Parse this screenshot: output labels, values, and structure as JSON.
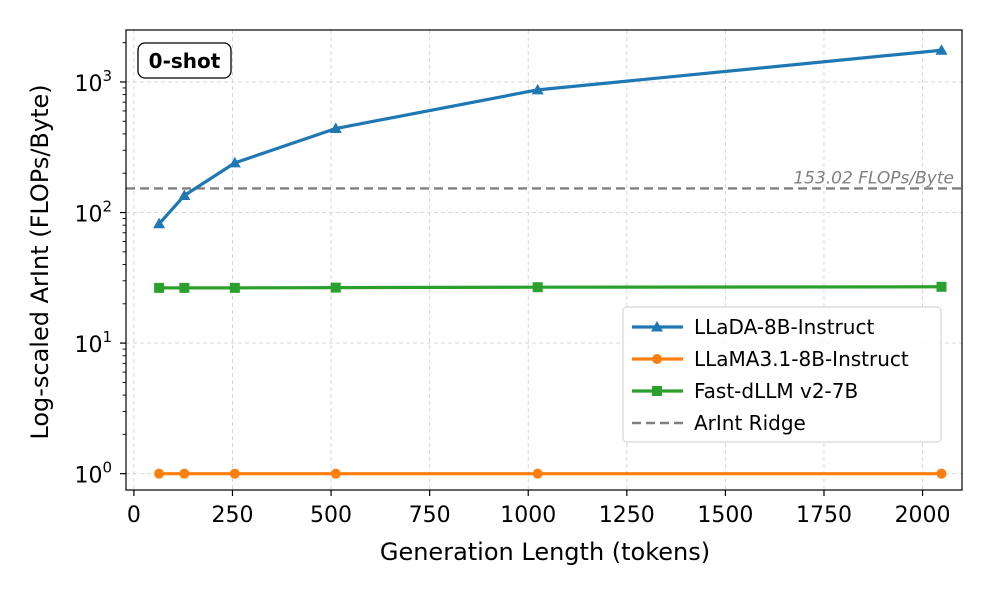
{
  "chart_data": {
    "type": "line",
    "title": "",
    "badge": "0-shot",
    "xlabel": "Generation Length (tokens)",
    "ylabel": "Log-scaled ArInt (FLOPs/Byte)",
    "xscale": "linear",
    "yscale": "log",
    "xlim": [
      -20,
      2100
    ],
    "ylim": [
      0.75,
      2500
    ],
    "xticks": [
      0,
      250,
      500,
      750,
      1000,
      1250,
      1500,
      1750,
      2000
    ],
    "xtick_labels": [
      "0",
      "250",
      "500",
      "750",
      "1000",
      "1250",
      "1500",
      "1750",
      "2000"
    ],
    "yticks": [
      1,
      10,
      100,
      1000
    ],
    "ytick_labels": [
      {
        "base": "10",
        "exp": "0"
      },
      {
        "base": "10",
        "exp": "1"
      },
      {
        "base": "10",
        "exp": "2"
      },
      {
        "base": "10",
        "exp": "3"
      }
    ],
    "grid": true,
    "legend_position": "lower-right",
    "x": [
      64,
      128,
      256,
      512,
      1024,
      2048
    ],
    "series": [
      {
        "name": "LLaDA-8B-Instruct",
        "color": "#1f77b4",
        "marker": "triangle",
        "values": [
          82,
          135,
          240,
          440,
          870,
          1750
        ]
      },
      {
        "name": "LLaMA3.1-8B-Instruct",
        "color": "#ff7f0e",
        "marker": "circle",
        "values": [
          1.0,
          1.0,
          1.0,
          1.0,
          1.0,
          1.0
        ]
      },
      {
        "name": "Fast-dLLM v2-7B",
        "color": "#2ca02c",
        "marker": "square",
        "values": [
          26.5,
          26.5,
          26.5,
          26.6,
          26.8,
          27.0
        ]
      }
    ],
    "reference_line": {
      "name": "ArInt Ridge",
      "value": 153.02,
      "label": "153.02 FLOPs/Byte",
      "color": "#808080",
      "style": "dashed"
    }
  }
}
